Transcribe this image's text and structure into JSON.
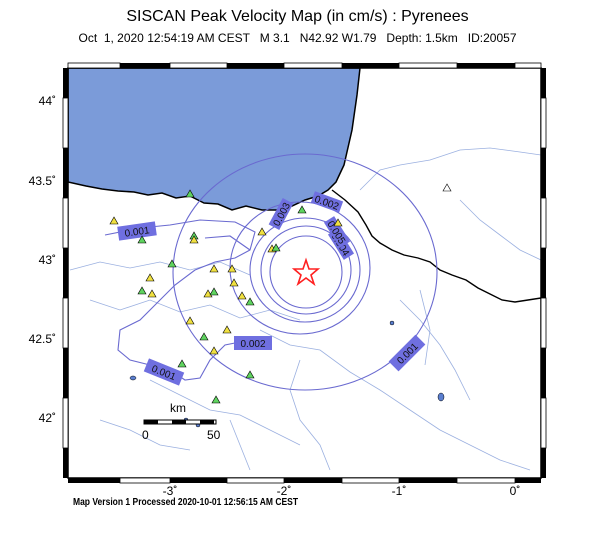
{
  "header": {
    "title": "SISCAN Peak Velocity Map (in cm/s) : Pyrenees",
    "subtitle": "Oct  1, 2020 12:54:19 AM CEST   M 3.1   N42.92 W1.79   Depth: 1.5km   ID:20057"
  },
  "footer": {
    "text": "Map Version 1 Processed 2020-10-01 12:56:15 AM CEST"
  },
  "axes": {
    "lat_ticks": [
      "44˚",
      "43.5˚",
      "43˚",
      "42.5˚",
      "42˚"
    ],
    "lon_ticks": [
      "-3˚",
      "-2˚",
      "-1˚",
      "0˚"
    ]
  },
  "contours": {
    "labels": [
      "0.001",
      "0.001",
      "0.001",
      "0.002",
      "0.002",
      "0.003",
      "0.004",
      "0.005"
    ]
  },
  "scale_bar": {
    "unit": "km",
    "start": "0",
    "end": "50"
  },
  "colors": {
    "sea": "#7b9bd9",
    "contour": "#6a6ad0",
    "label_box": "#6f6fe0",
    "station": "#5fd35f",
    "station_alt": "#f0e040",
    "epicenter": "#ff2020"
  },
  "legend_icons": [
    "epicenter-star-icon",
    "station-triangle-icon"
  ]
}
